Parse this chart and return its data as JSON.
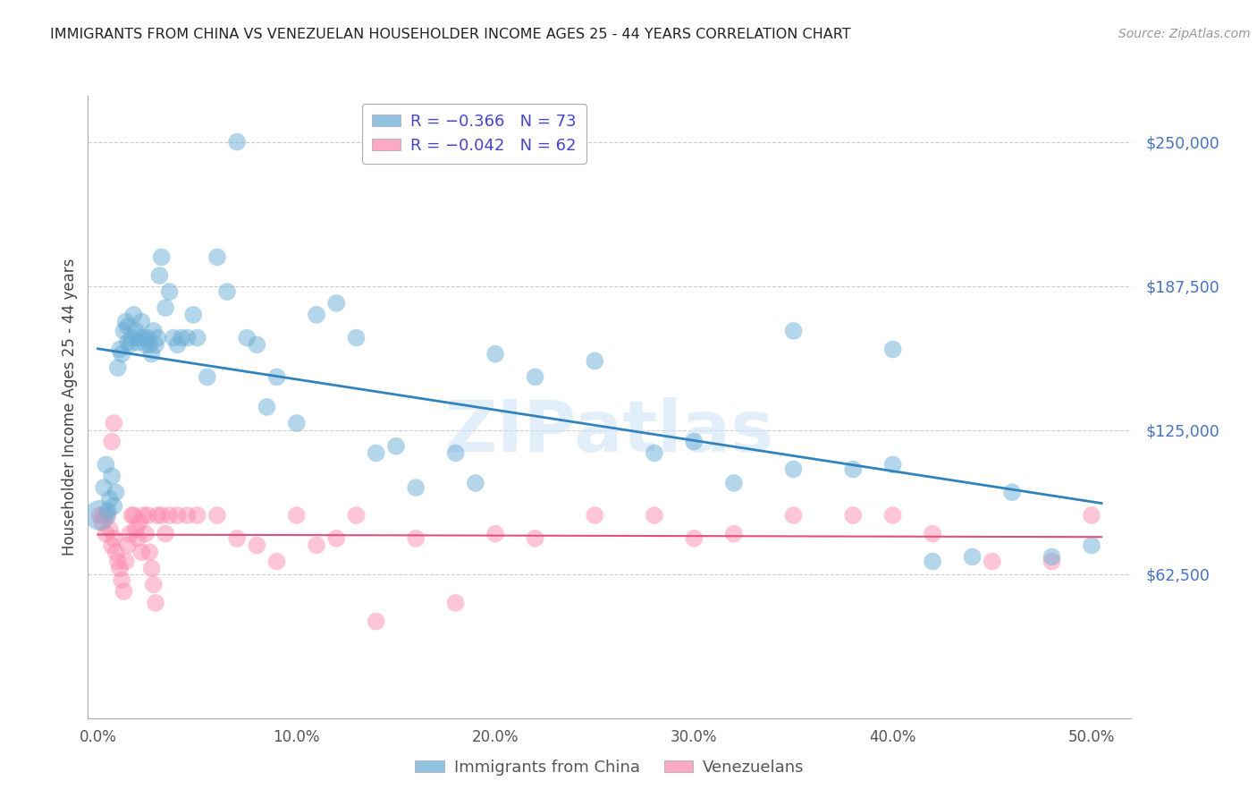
{
  "title": "IMMIGRANTS FROM CHINA VS VENEZUELAN HOUSEHOLDER INCOME AGES 25 - 44 YEARS CORRELATION CHART",
  "source": "Source: ZipAtlas.com",
  "ylabel": "Householder Income Ages 25 - 44 years",
  "ytick_labels": [
    "$62,500",
    "$125,000",
    "$187,500",
    "$250,000"
  ],
  "ytick_vals": [
    62500,
    125000,
    187500,
    250000
  ],
  "xlabel_ticks": [
    "0.0%",
    "10.0%",
    "20.0%",
    "30.0%",
    "40.0%",
    "50.0%"
  ],
  "xlabel_vals": [
    0.0,
    0.1,
    0.2,
    0.3,
    0.4,
    0.5
  ],
  "ylim": [
    0,
    270000
  ],
  "xlim": [
    -0.005,
    0.52
  ],
  "china_R": -0.366,
  "china_N": 73,
  "venezuela_R": -0.042,
  "venezuela_N": 62,
  "china_color": "#6baed6",
  "venezuela_color": "#fc8db0",
  "china_line_color": "#3182bd",
  "venezuela_line_color": "#e0507a",
  "background_color": "#ffffff",
  "grid_color": "#cccccc",
  "title_color": "#222222",
  "axis_label_color": "#444444",
  "ytick_color": "#4472c4",
  "xtick_color": "#555555",
  "watermark": "ZIPatlas",
  "china_scatter_x": [
    0.001,
    0.003,
    0.004,
    0.005,
    0.006,
    0.007,
    0.008,
    0.009,
    0.01,
    0.011,
    0.012,
    0.013,
    0.014,
    0.015,
    0.015,
    0.016,
    0.017,
    0.018,
    0.019,
    0.02,
    0.021,
    0.022,
    0.023,
    0.024,
    0.025,
    0.026,
    0.027,
    0.028,
    0.029,
    0.03,
    0.031,
    0.032,
    0.034,
    0.036,
    0.038,
    0.04,
    0.042,
    0.045,
    0.048,
    0.05,
    0.055,
    0.06,
    0.065,
    0.07,
    0.075,
    0.08,
    0.085,
    0.09,
    0.1,
    0.11,
    0.12,
    0.13,
    0.14,
    0.15,
    0.16,
    0.18,
    0.19,
    0.2,
    0.22,
    0.25,
    0.28,
    0.3,
    0.32,
    0.35,
    0.38,
    0.4,
    0.42,
    0.44,
    0.46,
    0.48,
    0.5,
    0.35,
    0.4
  ],
  "china_scatter_y": [
    88000,
    100000,
    110000,
    90000,
    95000,
    105000,
    92000,
    98000,
    152000,
    160000,
    158000,
    168000,
    172000,
    163000,
    170000,
    162000,
    165000,
    175000,
    168000,
    163000,
    165000,
    172000,
    165000,
    162000,
    165000,
    162000,
    158000,
    168000,
    162000,
    165000,
    192000,
    200000,
    178000,
    185000,
    165000,
    162000,
    165000,
    165000,
    175000,
    165000,
    148000,
    200000,
    185000,
    250000,
    165000,
    162000,
    135000,
    148000,
    128000,
    175000,
    180000,
    165000,
    115000,
    118000,
    100000,
    115000,
    102000,
    158000,
    148000,
    155000,
    115000,
    120000,
    102000,
    108000,
    108000,
    160000,
    68000,
    70000,
    98000,
    70000,
    75000,
    168000,
    110000
  ],
  "china_scatter_size": [
    600,
    200,
    200,
    200,
    200,
    200,
    200,
    200,
    200,
    200,
    200,
    200,
    200,
    200,
    200,
    200,
    200,
    200,
    200,
    200,
    200,
    200,
    200,
    200,
    200,
    200,
    200,
    200,
    200,
    200,
    200,
    200,
    200,
    200,
    200,
    200,
    200,
    200,
    200,
    200,
    200,
    200,
    200,
    200,
    200,
    200,
    200,
    200,
    200,
    200,
    200,
    200,
    200,
    200,
    200,
    200,
    200,
    200,
    200,
    200,
    200,
    200,
    200,
    200,
    200,
    200,
    200,
    200,
    200,
    200,
    200,
    200,
    200
  ],
  "venezuela_scatter_x": [
    0.001,
    0.002,
    0.003,
    0.004,
    0.005,
    0.006,
    0.007,
    0.008,
    0.009,
    0.01,
    0.011,
    0.012,
    0.013,
    0.014,
    0.015,
    0.016,
    0.017,
    0.018,
    0.019,
    0.02,
    0.021,
    0.022,
    0.023,
    0.024,
    0.025,
    0.026,
    0.027,
    0.028,
    0.029,
    0.03,
    0.032,
    0.034,
    0.036,
    0.04,
    0.045,
    0.05,
    0.06,
    0.07,
    0.08,
    0.09,
    0.1,
    0.11,
    0.12,
    0.13,
    0.14,
    0.16,
    0.18,
    0.2,
    0.22,
    0.25,
    0.28,
    0.3,
    0.32,
    0.35,
    0.38,
    0.4,
    0.42,
    0.45,
    0.48,
    0.5,
    0.007,
    0.008
  ],
  "venezuela_scatter_y": [
    88000,
    85000,
    88000,
    80000,
    88000,
    82000,
    75000,
    78000,
    72000,
    68000,
    65000,
    60000,
    55000,
    68000,
    75000,
    80000,
    88000,
    88000,
    82000,
    78000,
    85000,
    72000,
    88000,
    80000,
    88000,
    72000,
    65000,
    58000,
    50000,
    88000,
    88000,
    80000,
    88000,
    88000,
    88000,
    88000,
    88000,
    78000,
    75000,
    68000,
    88000,
    75000,
    78000,
    88000,
    42000,
    78000,
    50000,
    80000,
    78000,
    88000,
    88000,
    78000,
    80000,
    88000,
    88000,
    88000,
    80000,
    68000,
    68000,
    88000,
    120000,
    128000
  ],
  "venezuela_scatter_size": [
    200,
    200,
    200,
    200,
    200,
    200,
    200,
    200,
    200,
    200,
    200,
    200,
    200,
    200,
    200,
    200,
    200,
    200,
    200,
    200,
    200,
    200,
    200,
    200,
    200,
    200,
    200,
    200,
    200,
    200,
    200,
    200,
    200,
    200,
    200,
    200,
    200,
    200,
    200,
    200,
    200,
    200,
    200,
    200,
    200,
    200,
    200,
    200,
    200,
    200,
    200,
    200,
    200,
    200,
    200,
    200,
    200,
    200,
    200,
    200,
    200,
    200
  ],
  "legend_title_R_china": "R = −0.366",
  "legend_title_R_venezuela": "R = −0.042",
  "legend_N_china": "N = 73",
  "legend_N_venezuela": "N = 62"
}
